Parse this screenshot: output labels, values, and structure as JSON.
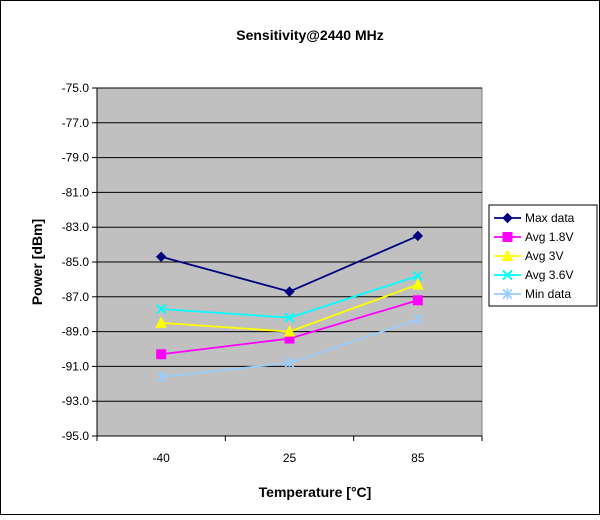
{
  "chart_data": {
    "type": "line",
    "title": "Sensitivity@2440 MHz",
    "xlabel": "Temperature [°C]",
    "ylabel": "Power [dBm]",
    "categories": [
      "-40",
      "25",
      "85"
    ],
    "ylim": [
      -95.0,
      -75.0
    ],
    "yticks": [
      "-75.0",
      "-77.0",
      "-79.0",
      "-81.0",
      "-83.0",
      "-85.0",
      "-87.0",
      "-89.0",
      "-91.0",
      "-93.0",
      "-95.0"
    ],
    "grid": "horizontal",
    "legend_position": "right",
    "plot_background": "#c0c0c0",
    "series": [
      {
        "name": "Max data",
        "values": [
          -84.7,
          -86.7,
          -83.5
        ],
        "color": "#000080",
        "marker": "diamond"
      },
      {
        "name": "Avg 1.8V",
        "values": [
          -90.3,
          -89.4,
          -87.2
        ],
        "color": "#ff00ff",
        "marker": "square"
      },
      {
        "name": "Avg 3V",
        "values": [
          -88.5,
          -89.0,
          -86.3
        ],
        "color": "#ffff00",
        "marker": "triangle"
      },
      {
        "name": "Avg 3.6V",
        "values": [
          -87.7,
          -88.2,
          -85.8
        ],
        "color": "#00ffff",
        "marker": "x"
      },
      {
        "name": "Min data",
        "values": [
          -91.6,
          -90.8,
          -88.3
        ],
        "color": "#99ccff",
        "marker": "asterisk"
      }
    ]
  }
}
